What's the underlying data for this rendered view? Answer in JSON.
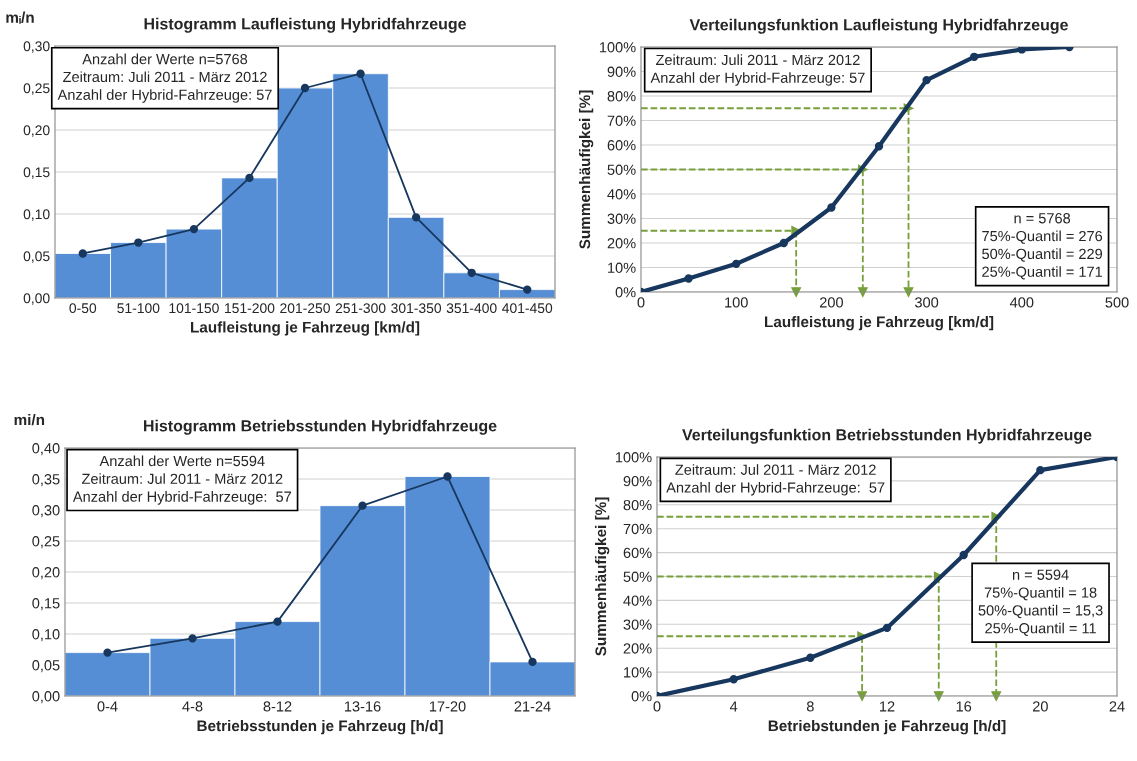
{
  "chart_data": [
    {
      "type": "bar",
      "title": "Histogramm Laufleistung Hybridfahrzeuge",
      "xlabel": "Laufleistung je Fahrzeug [km/d]",
      "ylabel": "mᵢ/n",
      "categories": [
        "0-50",
        "51-100",
        "101-150",
        "151-200",
        "201-250",
        "251-300",
        "301-350",
        "351-400",
        "401-450"
      ],
      "series": [
        {
          "type": "bar",
          "color": "#558ed5",
          "values": [
            0.053,
            0.066,
            0.082,
            0.143,
            0.25,
            0.267,
            0.096,
            0.03,
            0.01
          ]
        },
        {
          "type": "line",
          "color": "#17375e",
          "marker": "circle",
          "values": [
            0.053,
            0.066,
            0.082,
            0.143,
            0.25,
            0.267,
            0.096,
            0.03,
            0.01
          ]
        }
      ],
      "ylim": [
        0,
        0.3
      ],
      "yticks": [
        {
          "value": 0,
          "label": "0,00"
        },
        {
          "value": 0.05,
          "label": "0,05"
        },
        {
          "value": 0.1,
          "label": "0,10"
        },
        {
          "value": 0.15,
          "label": "0,15"
        },
        {
          "value": 0.2,
          "label": "0,20"
        },
        {
          "value": 0.25,
          "label": "0,25"
        },
        {
          "value": 0.3,
          "label": "0,30"
        }
      ],
      "grid": "y",
      "annotations": [
        "Anzahl der Werte n=5768\nZeitraum: Juli 2011 - März 2012\nAnzahl der Hybrid-Fahrzeuge: 57"
      ]
    },
    {
      "type": "line",
      "title": "Verteilungsfunktion Laufleistung Hybridfahrzeuge",
      "xlabel": "Laufleistung je Fahrzeug [km/d]",
      "ylabel": "Summenhäufigkei [%]",
      "x": [
        0,
        50,
        100,
        150,
        200,
        250,
        300,
        350,
        400,
        450
      ],
      "series": [
        {
          "color": "#17375e",
          "values": [
            0,
            5.5,
            11.5,
            20,
            34.5,
            59.5,
            86.5,
            96,
            99,
            100
          ]
        }
      ],
      "marker": "circle",
      "xlim": [
        0,
        500
      ],
      "xticks": [
        0,
        100,
        200,
        300,
        400,
        500
      ],
      "ylim": [
        0,
        100
      ],
      "yticks": [
        {
          "value": 0,
          "label": "0%"
        },
        {
          "value": 10,
          "label": "10%"
        },
        {
          "value": 20,
          "label": "20%"
        },
        {
          "value": 30,
          "label": "30%"
        },
        {
          "value": 40,
          "label": "40%"
        },
        {
          "value": 50,
          "label": "50%"
        },
        {
          "value": 60,
          "label": "60%"
        },
        {
          "value": 70,
          "label": "70%"
        },
        {
          "value": 80,
          "label": "80%"
        },
        {
          "value": 90,
          "label": "90%"
        },
        {
          "value": 100,
          "label": "100%"
        }
      ],
      "grid": "y",
      "ref_lines": [
        {
          "axis": "y",
          "value": 25,
          "color": "#77a03c",
          "line_style": "dashed"
        },
        {
          "axis": "y",
          "value": 50,
          "color": "#77a03c",
          "line_style": "dashed"
        },
        {
          "axis": "y",
          "value": 75,
          "color": "#77a03c",
          "line_style": "dashed"
        },
        {
          "axis": "x",
          "value": 163,
          "color": "#77a03c",
          "line_style": "dashed"
        },
        {
          "axis": "x",
          "value": 233,
          "color": "#77a03c",
          "line_style": "dashed"
        },
        {
          "axis": "x",
          "value": 281,
          "color": "#77a03c",
          "line_style": "dashed"
        }
      ],
      "annotations": [
        "Zeitraum: Juli 2011 - März 2012\nAnzahl der Hybrid-Fahrzeuge: 57",
        "n = 5768\n75%-Quantil = 276\n50%-Quantil = 229\n25%-Quantil = 171"
      ]
    },
    {
      "type": "bar",
      "title": "Histogramm Betriebsstunden Hybridfahrzeuge",
      "xlabel": "Betriebsstunden je Fahrzeug [h/d]",
      "ylabel": "mi/n",
      "categories": [
        "0-4",
        "4-8",
        "8-12",
        "13-16",
        "17-20",
        "21-24"
      ],
      "series": [
        {
          "type": "bar",
          "color": "#558ed5",
          "values": [
            0.07,
            0.093,
            0.12,
            0.307,
            0.354,
            0.055
          ]
        },
        {
          "type": "line",
          "color": "#17375e",
          "marker": "circle",
          "values": [
            0.07,
            0.093,
            0.12,
            0.307,
            0.354,
            0.055
          ]
        }
      ],
      "ylim": [
        0,
        0.4
      ],
      "yticks": [
        {
          "value": 0,
          "label": "0,00"
        },
        {
          "value": 0.05,
          "label": "0,05"
        },
        {
          "value": 0.1,
          "label": "0,10"
        },
        {
          "value": 0.15,
          "label": "0,15"
        },
        {
          "value": 0.2,
          "label": "0,20"
        },
        {
          "value": 0.25,
          "label": "0,25"
        },
        {
          "value": 0.3,
          "label": "0,30"
        },
        {
          "value": 0.35,
          "label": "0,35"
        },
        {
          "value": 0.4,
          "label": "0,40"
        }
      ],
      "grid": "y",
      "annotations": [
        "Anzahl der Werte n=5594\nZeitraum: Jul 2011 - März 2012\nAnzahl der Hybrid-Fahrzeuge:  57"
      ]
    },
    {
      "type": "line",
      "title": "Verteilungsfunktion Betriebsstunden Hybridfahrzeuge",
      "xlabel": "Betriebstunden je Fahrzeug [h/d]",
      "ylabel": "Summenhäufigkei [%]",
      "x": [
        0,
        4,
        8,
        12,
        16,
        20,
        24
      ],
      "series": [
        {
          "color": "#17375e",
          "values": [
            0,
            7,
            16,
            28.5,
            59,
            94.5,
            100
          ]
        }
      ],
      "marker": "circle",
      "xlim": [
        0,
        24
      ],
      "xticks": [
        0,
        4,
        8,
        12,
        16,
        20,
        24
      ],
      "ylim": [
        0,
        100
      ],
      "yticks": [
        {
          "value": 0,
          "label": "0%"
        },
        {
          "value": 10,
          "label": "10%"
        },
        {
          "value": 20,
          "label": "20%"
        },
        {
          "value": 30,
          "label": "30%"
        },
        {
          "value": 40,
          "label": "40%"
        },
        {
          "value": 50,
          "label": "50%"
        },
        {
          "value": 60,
          "label": "60%"
        },
        {
          "value": 70,
          "label": "70%"
        },
        {
          "value": 80,
          "label": "80%"
        },
        {
          "value": 90,
          "label": "90%"
        },
        {
          "value": 100,
          "label": "100%"
        }
      ],
      "grid": "y",
      "ref_lines": [
        {
          "axis": "y",
          "value": 25,
          "color": "#77a03c",
          "line_style": "dashed"
        },
        {
          "axis": "y",
          "value": 50,
          "color": "#77a03c",
          "line_style": "dashed"
        },
        {
          "axis": "y",
          "value": 75,
          "color": "#77a03c",
          "line_style": "dashed"
        },
        {
          "axis": "x",
          "value": 10.7,
          "color": "#77a03c",
          "line_style": "dashed"
        },
        {
          "axis": "x",
          "value": 14.7,
          "color": "#77a03c",
          "line_style": "dashed"
        },
        {
          "axis": "x",
          "value": 17.7,
          "color": "#77a03c",
          "line_style": "dashed"
        }
      ],
      "annotations": [
        "Zeitraum: Jul 2011 - März 2012\nAnzahl der Hybrid-Fahrzeuge:  57",
        "n = 5594\n75%-Quantil = 18\n50%-Quantil = 15,3\n25%-Quantil = 11"
      ]
    }
  ]
}
